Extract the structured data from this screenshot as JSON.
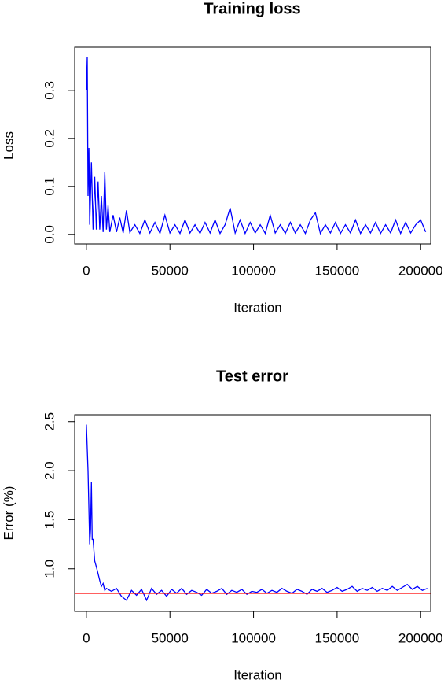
{
  "chart_data": [
    {
      "type": "line",
      "title": "Training loss",
      "x_label": "Iteration",
      "y_label": "Loss",
      "color": "#0000ff",
      "x": [
        0,
        500,
        1000,
        1500,
        2000,
        3000,
        4000,
        5000,
        6000,
        7000,
        8000,
        9000,
        10000,
        11000,
        12000,
        13000,
        14000,
        16000,
        18000,
        20000,
        22000,
        24000,
        26000,
        29000,
        32000,
        35000,
        38000,
        41000,
        44000,
        47000,
        50000,
        53000,
        56000,
        59000,
        62000,
        65000,
        68000,
        71000,
        74000,
        77000,
        80000,
        83000,
        86000,
        89000,
        92000,
        95000,
        98000,
        101000,
        104000,
        107000,
        110000,
        113000,
        116000,
        119000,
        122000,
        125000,
        128000,
        131000,
        134000,
        137000,
        140000,
        143000,
        146000,
        149000,
        152000,
        155000,
        158000,
        161000,
        164000,
        167000,
        170000,
        173000,
        176000,
        179000,
        182000,
        185000,
        188000,
        191000,
        194000,
        197000,
        200000,
        203000
      ],
      "values": [
        0.3,
        0.37,
        0.08,
        0.18,
        0.02,
        0.15,
        0.01,
        0.12,
        0.01,
        0.11,
        0.01,
        0.08,
        0.005,
        0.13,
        0.01,
        0.06,
        0.005,
        0.04,
        0.005,
        0.035,
        0.003,
        0.05,
        0.004,
        0.02,
        0.002,
        0.03,
        0.003,
        0.025,
        0.002,
        0.04,
        0.003,
        0.02,
        0.002,
        0.03,
        0.003,
        0.02,
        0.002,
        0.025,
        0.003,
        0.03,
        0.002,
        0.02,
        0.055,
        0.003,
        0.03,
        0.002,
        0.025,
        0.003,
        0.02,
        0.002,
        0.04,
        0.003,
        0.02,
        0.002,
        0.025,
        0.003,
        0.02,
        0.002,
        0.03,
        0.045,
        0.002,
        0.02,
        0.003,
        0.025,
        0.002,
        0.02,
        0.003,
        0.03,
        0.002,
        0.02,
        0.003,
        0.025,
        0.002,
        0.02,
        0.003,
        0.03,
        0.002,
        0.025,
        0.003,
        0.02,
        0.03,
        0.005
      ],
      "xlim": [
        -7000,
        206000
      ],
      "xticks": [
        0,
        50000,
        100000,
        150000,
        200000
      ],
      "ylim": [
        -0.02,
        0.39
      ],
      "yticks": [
        {
          "value": 0,
          "label": "0.0"
        },
        0.1,
        0.2,
        0.3
      ]
    },
    {
      "type": "line",
      "title": "Test error",
      "x_label": "Iteration",
      "y_label": "Error (%)",
      "color": "#0000ff",
      "x": [
        0,
        1000,
        2000,
        2500,
        3000,
        3500,
        4000,
        5000,
        6000,
        7000,
        8000,
        9000,
        10000,
        11000,
        12000,
        15000,
        18000,
        21000,
        24000,
        27000,
        30000,
        33000,
        36000,
        39000,
        42000,
        45000,
        48000,
        51000,
        54000,
        57000,
        60000,
        63000,
        66000,
        69000,
        72000,
        75000,
        78000,
        81000,
        84000,
        87000,
        90000,
        93000,
        96000,
        99000,
        102000,
        105000,
        108000,
        111000,
        114000,
        117000,
        120000,
        123000,
        126000,
        129000,
        132000,
        135000,
        138000,
        141000,
        144000,
        147000,
        150000,
        153000,
        156000,
        159000,
        162000,
        165000,
        168000,
        171000,
        174000,
        177000,
        180000,
        183000,
        186000,
        189000,
        192000,
        195000,
        198000,
        201000,
        204000
      ],
      "values": [
        2.47,
        2.0,
        1.25,
        1.4,
        1.88,
        1.3,
        1.3,
        1.08,
        1.02,
        0.95,
        0.88,
        0.82,
        0.85,
        0.78,
        0.8,
        0.77,
        0.8,
        0.72,
        0.68,
        0.78,
        0.73,
        0.79,
        0.68,
        0.8,
        0.74,
        0.78,
        0.72,
        0.79,
        0.75,
        0.8,
        0.74,
        0.78,
        0.76,
        0.73,
        0.79,
        0.75,
        0.77,
        0.8,
        0.74,
        0.78,
        0.76,
        0.79,
        0.74,
        0.77,
        0.76,
        0.79,
        0.75,
        0.78,
        0.76,
        0.8,
        0.77,
        0.75,
        0.79,
        0.77,
        0.74,
        0.79,
        0.77,
        0.8,
        0.76,
        0.78,
        0.81,
        0.77,
        0.79,
        0.82,
        0.77,
        0.8,
        0.78,
        0.81,
        0.77,
        0.8,
        0.78,
        0.82,
        0.78,
        0.81,
        0.84,
        0.79,
        0.82,
        0.78,
        0.8
      ],
      "hline": {
        "value": 0.75,
        "color": "#ff0000"
      },
      "xlim": [
        -7000,
        206000
      ],
      "xticks": [
        0,
        50000,
        100000,
        150000,
        200000
      ],
      "ylim": [
        0.565,
        2.57
      ],
      "yticks": [
        {
          "value": 1.0,
          "label": "1.0"
        },
        1.5,
        {
          "value": 2.0,
          "label": "2.0"
        },
        2.5
      ]
    }
  ]
}
